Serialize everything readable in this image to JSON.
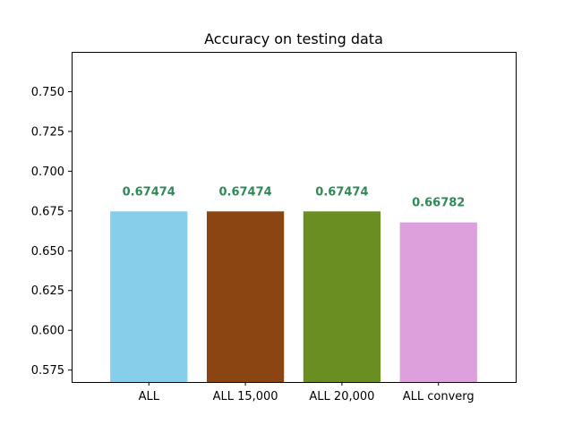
{
  "chart_data": {
    "type": "bar",
    "title": "Accuracy on testing data",
    "xlabel": "",
    "ylabel": "",
    "categories": [
      "ALL",
      "ALL 15,000",
      "ALL 20,000",
      "ALL converg"
    ],
    "values": [
      0.67474,
      0.67474,
      0.67474,
      0.66782
    ],
    "value_labels": [
      "0.67474",
      "0.67474",
      "0.67474",
      "0.66782"
    ],
    "bar_colors": [
      "#87ceeb",
      "#8b4513",
      "#6b8e23",
      "#dda0dd"
    ],
    "label_color": "#2e8b57",
    "ylim": [
      0.5675,
      0.775
    ],
    "yticks": [
      0.575,
      0.6,
      0.625,
      0.65,
      0.675,
      0.7,
      0.725,
      0.75
    ],
    "ytick_labels": [
      "0.575",
      "0.600",
      "0.625",
      "0.650",
      "0.675",
      "0.700",
      "0.725",
      "0.750"
    ],
    "grid": false,
    "legend": "none"
  }
}
